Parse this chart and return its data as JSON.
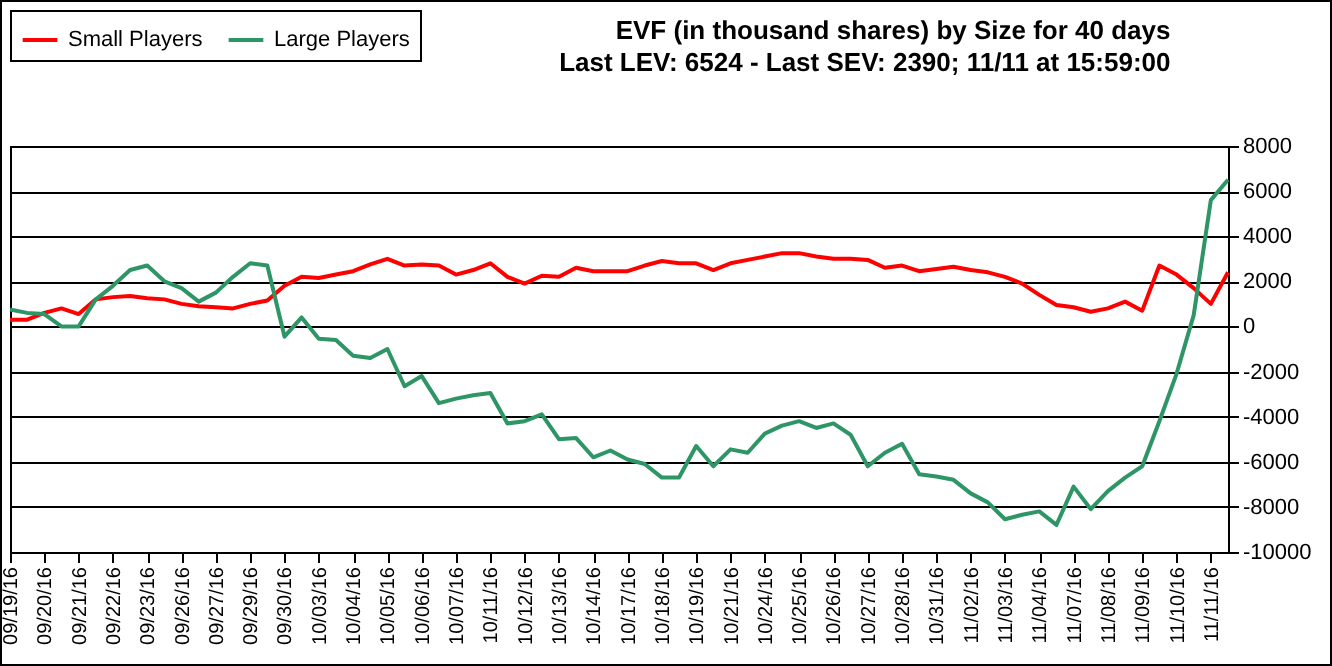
{
  "chart_data": {
    "type": "line",
    "title": "EVF (in thousand shares) by Size for 40 days",
    "subtitle": "Last LEV: 6524 - Last SEV: 2390; 11/11 at 15:59:00",
    "categories": [
      "09/19/16",
      null,
      "09/20/16",
      null,
      "09/21/16",
      null,
      "09/22/16",
      null,
      "09/23/16",
      null,
      "09/26/16",
      null,
      "09/27/16",
      null,
      "09/29/16",
      null,
      "09/30/16",
      null,
      "10/03/16",
      null,
      "10/04/16",
      null,
      "10/05/16",
      null,
      "10/06/16",
      null,
      "10/07/16",
      null,
      "10/11/16",
      null,
      "10/12/16",
      null,
      "10/13/16",
      null,
      "10/14/16",
      null,
      "10/17/16",
      null,
      "10/18/16",
      null,
      "10/19/16",
      null,
      "10/21/16",
      null,
      "10/24/16",
      null,
      "10/25/16",
      null,
      "10/26/16",
      null,
      "10/27/16",
      null,
      "10/28/16",
      null,
      "10/31/16",
      null,
      "11/02/16",
      null,
      "11/03/16",
      null,
      "11/04/16",
      null,
      "11/07/16",
      null,
      "11/08/16",
      null,
      "11/09/16",
      null,
      "11/10/16",
      null,
      "11/11/16",
      null
    ],
    "ylim": [
      -10000,
      8000
    ],
    "yticks": [
      -10000,
      -8000,
      -6000,
      -4000,
      -2000,
      0,
      2000,
      4000,
      6000,
      8000
    ],
    "grid": "y",
    "legend": "top left",
    "series": [
      {
        "name": "Small Players",
        "color": "#ff0000",
        "values": [
          300,
          300,
          600,
          800,
          550,
          1200,
          1300,
          1350,
          1250,
          1200,
          1000,
          900,
          850,
          800,
          1000,
          1150,
          1800,
          2200,
          2150,
          2300,
          2450,
          2750,
          3000,
          2700,
          2750,
          2700,
          2300,
          2500,
          2800,
          2200,
          1900,
          2250,
          2200,
          2600,
          2450,
          2450,
          2450,
          2700,
          2900,
          2800,
          2800,
          2500,
          2800,
          2950,
          3100,
          3250,
          3250,
          3100,
          3000,
          3000,
          2950,
          2600,
          2700,
          2450,
          2550,
          2650,
          2500,
          2400,
          2200,
          1900,
          1400,
          950,
          850,
          650,
          800,
          1100,
          700,
          2700,
          2300,
          1700,
          1000,
          2400
        ]
      },
      {
        "name": "Large Players",
        "color": "#2e9566",
        "values": [
          750,
          600,
          550,
          0,
          0,
          1200,
          1800,
          2500,
          2700,
          2000,
          1700,
          1100,
          1500,
          2200,
          2800,
          2700,
          -450,
          400,
          -550,
          -600,
          -1300,
          -1400,
          -1000,
          -2650,
          -2200,
          -3400,
          -3200,
          -3050,
          -2950,
          -4300,
          -4200,
          -3900,
          -5000,
          -4950,
          -5800,
          -5500,
          -5900,
          -6100,
          -6700,
          -6700,
          -5300,
          -6200,
          -5450,
          -5600,
          -4750,
          -4400,
          -4200,
          -4500,
          -4300,
          -4800,
          -6200,
          -5600,
          -5200,
          -6550,
          -6650,
          -6800,
          -7400,
          -7800,
          -8550,
          -8350,
          -8200,
          -8800,
          -7100,
          -8100,
          -7300,
          -6700,
          -6200,
          -4200,
          -2100,
          500,
          5600,
          6500
        ]
      }
    ]
  }
}
